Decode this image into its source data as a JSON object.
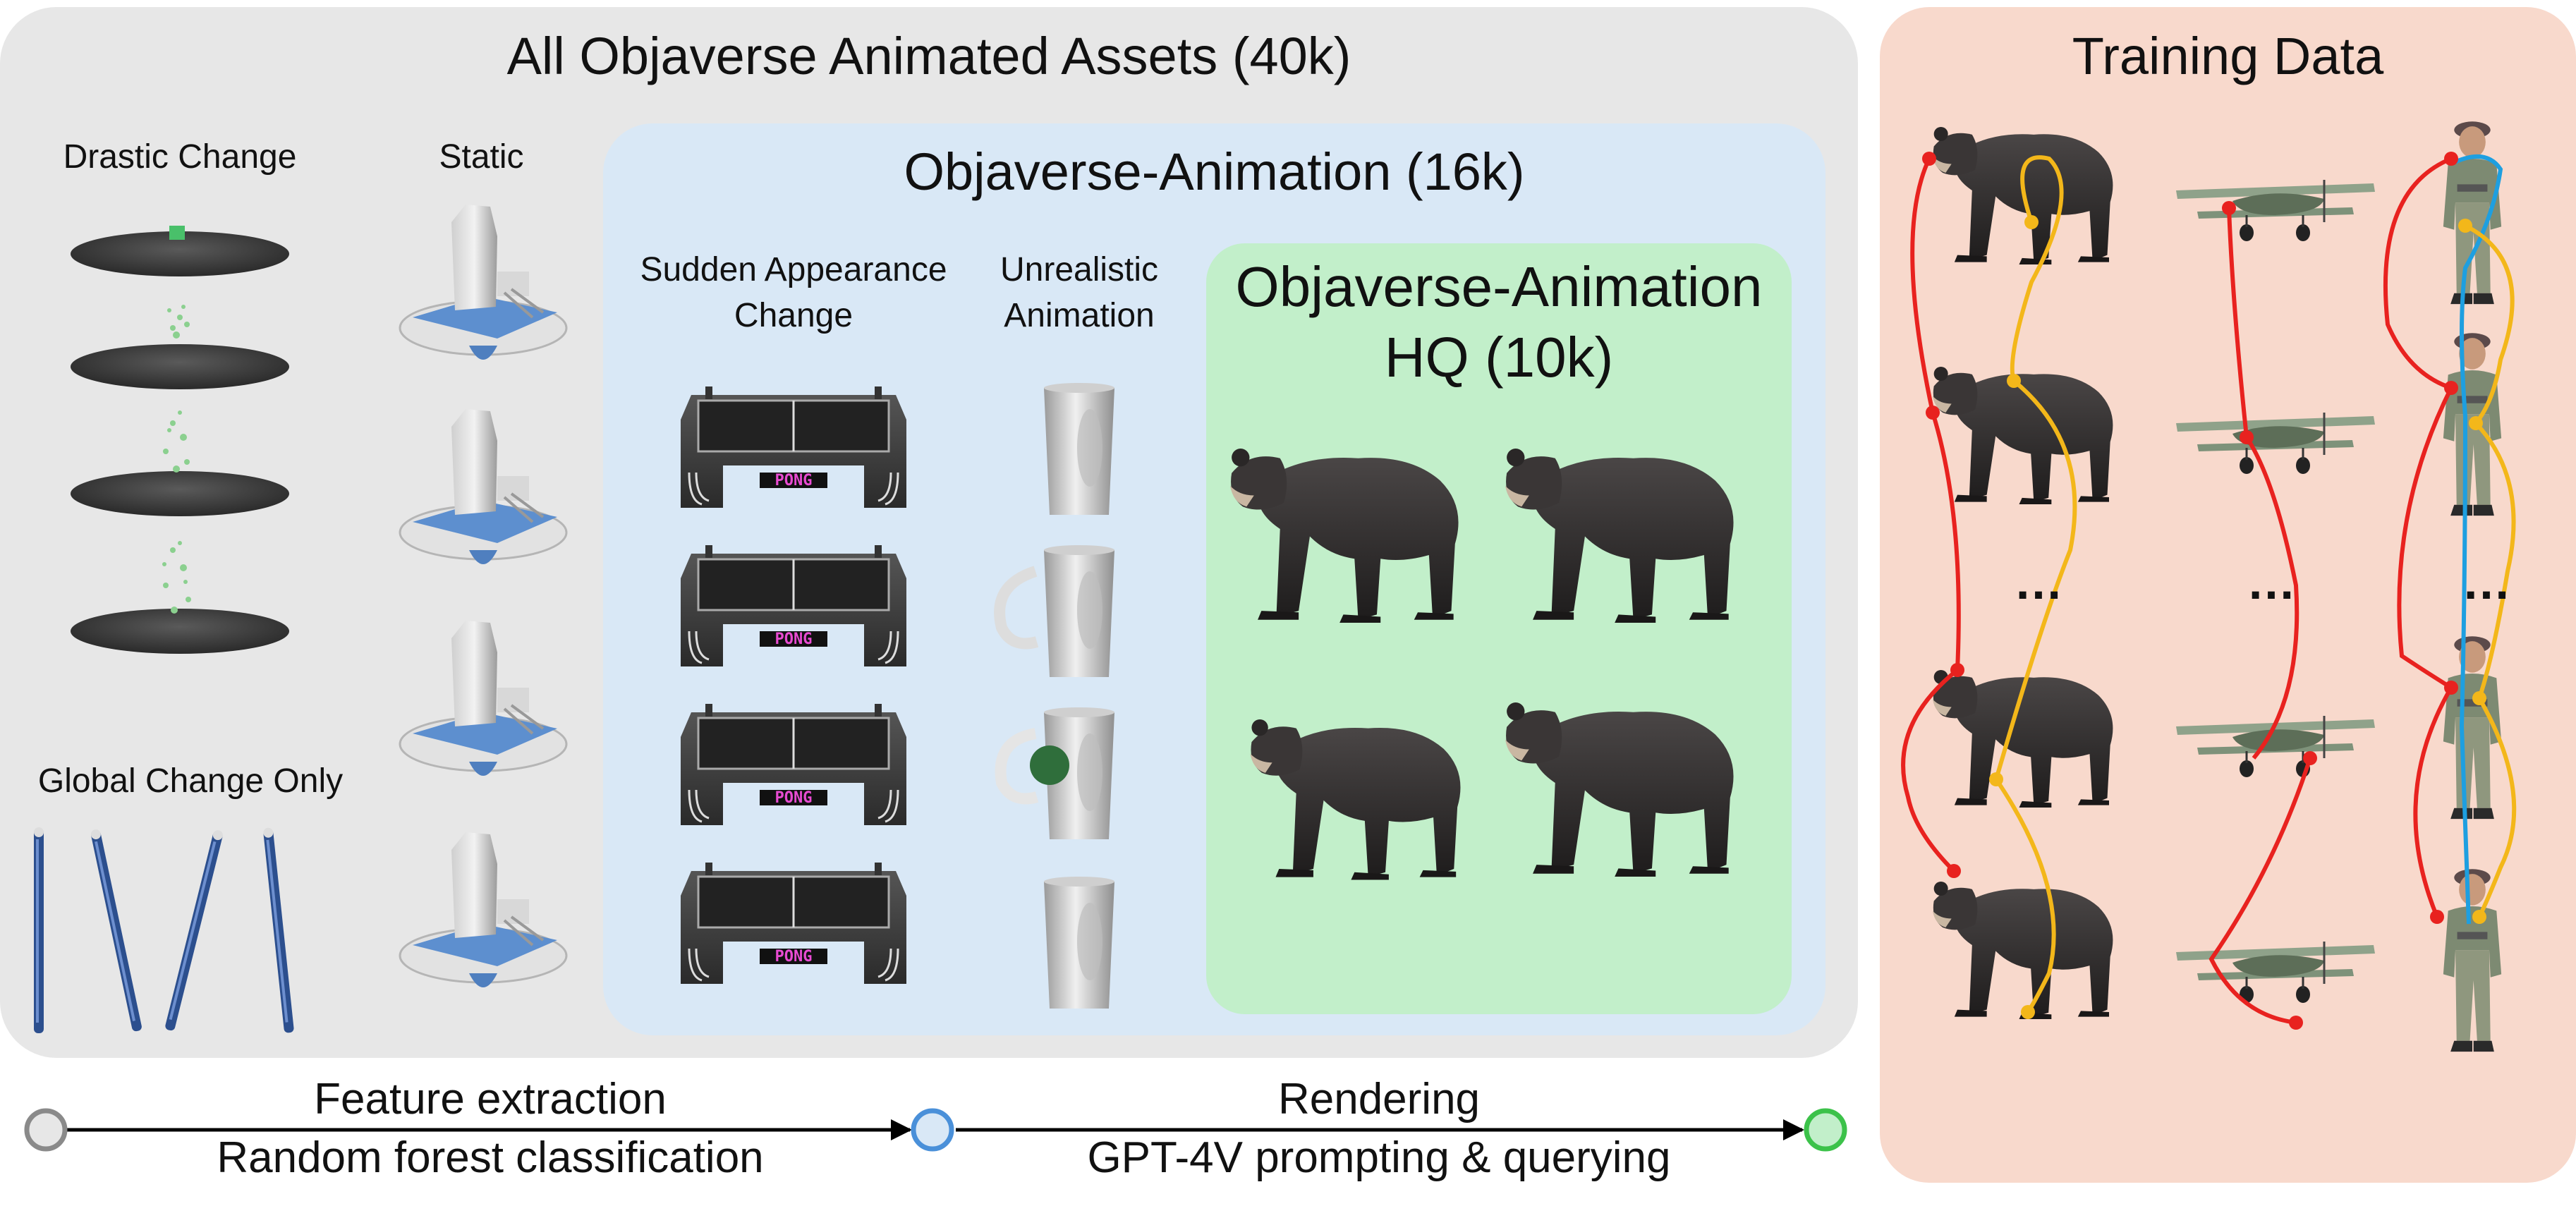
{
  "panels": {
    "all_assets": {
      "title": "All Objaverse Animated Assets (40k)"
    },
    "animation": {
      "title": "Objaverse-Animation (16k)"
    },
    "hq": {
      "title_line1": "Objaverse-Animation",
      "title_line2": "HQ (10k)"
    },
    "training": {
      "title": "Training Data",
      "ellipsis": [
        "…",
        "…",
        "…"
      ]
    }
  },
  "categories": {
    "drastic_change": "Drastic Change",
    "static": "Static",
    "global_change_only": "Global Change Only",
    "sudden_appearance_line1": "Sudden Appearance",
    "sudden_appearance_line2": "Change",
    "unrealistic_line1": "Unrealistic",
    "unrealistic_line2": "Animation"
  },
  "pipeline": {
    "step1_line1": "Feature extraction",
    "step1_line2": "Random forest classification",
    "step2_line1": "Rendering",
    "step2_line2": "GPT-4V prompting & querying"
  },
  "colors": {
    "all_panel": "#e7e7e7",
    "animation_panel": "#d9e8f6",
    "hq_panel": "#c2efca",
    "training_panel": "#f8d9cc",
    "node_gray": "#8a8a8a",
    "node_blue": "#4a90d9",
    "node_green": "#3cc24a",
    "link_red": "#e8221f",
    "link_yellow": "#f3b71a",
    "link_blue": "#1e9fe0"
  }
}
